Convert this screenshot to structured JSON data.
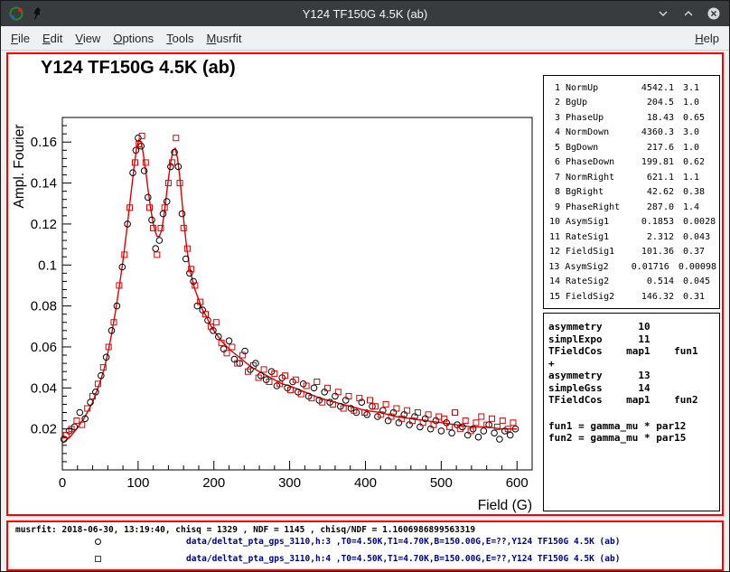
{
  "window": {
    "title": "Y124 TF150G 4.5K (ab)"
  },
  "menu": {
    "items": [
      {
        "label": "File"
      },
      {
        "label": "Edit"
      },
      {
        "label": "View"
      },
      {
        "label": "Options"
      },
      {
        "label": "Tools"
      },
      {
        "label": "Musrfit"
      }
    ],
    "right_items": [
      {
        "label": "Help"
      }
    ]
  },
  "canvas": {
    "title": "Y124 TF150G 4.5K (ab)"
  },
  "params_panel": {
    "rows": [
      {
        "idx": "1",
        "name": "NormUp",
        "value": "4542.1",
        "error": "3.1"
      },
      {
        "idx": "2",
        "name": "BgUp",
        "value": "204.5",
        "error": "1.0"
      },
      {
        "idx": "3",
        "name": "PhaseUp",
        "value": "18.43",
        "error": "0.65"
      },
      {
        "idx": "4",
        "name": "NormDown",
        "value": "4360.3",
        "error": "3.0"
      },
      {
        "idx": "5",
        "name": "BgDown",
        "value": "217.6",
        "error": "1.0"
      },
      {
        "idx": "6",
        "name": "PhaseDown",
        "value": "199.81",
        "error": "0.62"
      },
      {
        "idx": "7",
        "name": "NormRight",
        "value": "621.1",
        "error": "1.1"
      },
      {
        "idx": "8",
        "name": "BgRight",
        "value": "42.62",
        "error": "0.38"
      },
      {
        "idx": "9",
        "name": "PhaseRight",
        "value": "287.0",
        "error": "1.4"
      },
      {
        "idx": "10",
        "name": "AsymSig1",
        "value": "0.1853",
        "error": "0.0028"
      },
      {
        "idx": "11",
        "name": "RateSig1",
        "value": "2.312",
        "error": "0.043"
      },
      {
        "idx": "12",
        "name": "FieldSig1",
        "value": "101.36",
        "error": "0.37"
      },
      {
        "idx": "13",
        "name": "AsymSig2",
        "value": "0.01716",
        "error": "0.00098"
      },
      {
        "idx": "14",
        "name": "RateSig2",
        "value": "0.514",
        "error": "0.045"
      },
      {
        "idx": "15",
        "name": "FieldSig2",
        "value": "146.32",
        "error": "0.31"
      }
    ]
  },
  "theory_panel": {
    "lines": [
      "asymmetry      10",
      "simplExpo      11",
      "TFieldCos    map1    fun1",
      "+",
      "asymmetry      13",
      "simpleGss      14",
      "TFieldCos    map1    fun2"
    ],
    "fun_lines": [
      "fun1 = gamma_mu * par12",
      "fun2 = gamma_mu * par15"
    ]
  },
  "footer": {
    "status": "musrfit: 2018-06-30, 13:19:40, chisq = 1329 , NDF = 1145 , chisq/NDF = 1.1606986899563319",
    "legend": [
      {
        "marker": "circle",
        "color": "#000000",
        "text": "data/deltat_pta_gps_3110,h:3 ,T0=4.50K,T1=4.70K,B=150.00G,E=??,Y124 TF150G 4.5K (ab)"
      },
      {
        "marker": "square",
        "color": "#e00000",
        "text": "data/deltat_pta_gps_3110,h:4 ,T0=4.50K,T1=4.70K,B=150.00G,E=??,Y124 TF150G 4.5K (ab)"
      }
    ]
  },
  "chart_data": {
    "type": "scatter",
    "title": "Y124 TF150G 4.5K (ab)",
    "xlabel": "Field (G)",
    "ylabel": "Ampl. Fourier",
    "xlim": [
      0,
      620
    ],
    "ylim": [
      0,
      0.172
    ],
    "xticks": [
      0,
      100,
      200,
      300,
      400,
      500,
      600
    ],
    "xtick_labels": [
      "0",
      "100",
      "200",
      "300",
      "400",
      "500",
      "600"
    ],
    "yticks": [
      0.02,
      0.04,
      0.06,
      0.08,
      0.1,
      0.12,
      0.14,
      0.16
    ],
    "ytick_labels": [
      "0.02",
      "0.04",
      "0.06",
      "0.08",
      "0.1",
      "0.12",
      "0.14",
      "0.16"
    ],
    "x_minor_step": 20,
    "y_minor_step": 0.004,
    "grid": false,
    "legend_position": "footer",
    "fit": {
      "name": "fit",
      "color": "#e00000",
      "points": [
        [
          0,
          0.013
        ],
        [
          10,
          0.016
        ],
        [
          20,
          0.0205
        ],
        [
          30,
          0.026
        ],
        [
          40,
          0.033
        ],
        [
          50,
          0.043
        ],
        [
          55,
          0.049
        ],
        [
          60,
          0.057
        ],
        [
          65,
          0.066
        ],
        [
          70,
          0.077
        ],
        [
          75,
          0.089
        ],
        [
          80,
          0.102
        ],
        [
          85,
          0.117
        ],
        [
          90,
          0.133
        ],
        [
          95,
          0.149
        ],
        [
          98,
          0.157
        ],
        [
          101,
          0.161
        ],
        [
          104,
          0.16
        ],
        [
          107,
          0.154
        ],
        [
          110,
          0.146
        ],
        [
          113,
          0.137
        ],
        [
          116,
          0.129
        ],
        [
          119,
          0.122
        ],
        [
          122,
          0.117
        ],
        [
          125,
          0.114
        ],
        [
          128,
          0.114
        ],
        [
          131,
          0.117
        ],
        [
          134,
          0.124
        ],
        [
          137,
          0.133
        ],
        [
          140,
          0.142
        ],
        [
          143,
          0.15
        ],
        [
          146,
          0.156
        ],
        [
          149,
          0.157
        ],
        [
          152,
          0.152
        ],
        [
          155,
          0.143
        ],
        [
          158,
          0.131
        ],
        [
          161,
          0.119
        ],
        [
          164,
          0.109
        ],
        [
          167,
          0.101
        ],
        [
          170,
          0.095
        ],
        [
          175,
          0.088
        ],
        [
          180,
          0.083
        ],
        [
          185,
          0.078
        ],
        [
          190,
          0.075
        ],
        [
          195,
          0.071
        ],
        [
          200,
          0.068
        ],
        [
          210,
          0.063
        ],
        [
          220,
          0.059
        ],
        [
          230,
          0.056
        ],
        [
          240,
          0.053
        ],
        [
          250,
          0.05
        ],
        [
          260,
          0.048
        ],
        [
          270,
          0.046
        ],
        [
          280,
          0.044
        ],
        [
          290,
          0.042
        ],
        [
          300,
          0.041
        ],
        [
          320,
          0.038
        ],
        [
          340,
          0.035
        ],
        [
          360,
          0.033
        ],
        [
          380,
          0.031
        ],
        [
          400,
          0.029
        ],
        [
          420,
          0.028
        ],
        [
          440,
          0.026
        ],
        [
          460,
          0.025
        ],
        [
          480,
          0.024
        ],
        [
          500,
          0.023
        ],
        [
          520,
          0.022
        ],
        [
          540,
          0.021
        ],
        [
          560,
          0.021
        ],
        [
          580,
          0.02
        ],
        [
          600,
          0.02
        ]
      ]
    },
    "series": [
      {
        "name": "data/deltat_pta_gps_3110,h:3",
        "marker": "circle",
        "color": "#000000",
        "points": [
          [
            2,
            0.015
          ],
          [
            9,
            0.019
          ],
          [
            16,
            0.021
          ],
          [
            23,
            0.028
          ],
          [
            30,
            0.025
          ],
          [
            37,
            0.033
          ],
          [
            44,
            0.038
          ],
          [
            51,
            0.046
          ],
          [
            58,
            0.055
          ],
          [
            65,
            0.068
          ],
          [
            72,
            0.08
          ],
          [
            79,
            0.099
          ],
          [
            86,
            0.12
          ],
          [
            93,
            0.145
          ],
          [
            97,
            0.156
          ],
          [
            100,
            0.162
          ],
          [
            104,
            0.158
          ],
          [
            108,
            0.146
          ],
          [
            113,
            0.133
          ],
          [
            118,
            0.122
          ],
          [
            123,
            0.108
          ],
          [
            128,
            0.112
          ],
          [
            133,
            0.125
          ],
          [
            138,
            0.131
          ],
          [
            143,
            0.148
          ],
          [
            148,
            0.155
          ],
          [
            153,
            0.148
          ],
          [
            158,
            0.125
          ],
          [
            163,
            0.103
          ],
          [
            168,
            0.096
          ],
          [
            173,
            0.092
          ],
          [
            178,
            0.08
          ],
          [
            185,
            0.078
          ],
          [
            192,
            0.073
          ],
          [
            199,
            0.068
          ],
          [
            206,
            0.065
          ],
          [
            213,
            0.059
          ],
          [
            220,
            0.063
          ],
          [
            227,
            0.054
          ],
          [
            234,
            0.052
          ],
          [
            241,
            0.058
          ],
          [
            248,
            0.049
          ],
          [
            255,
            0.052
          ],
          [
            262,
            0.046
          ],
          [
            269,
            0.044
          ],
          [
            276,
            0.048
          ],
          [
            283,
            0.041
          ],
          [
            290,
            0.045
          ],
          [
            297,
            0.04
          ],
          [
            304,
            0.043
          ],
          [
            311,
            0.038
          ],
          [
            318,
            0.042
          ],
          [
            325,
            0.036
          ],
          [
            332,
            0.04
          ],
          [
            339,
            0.034
          ],
          [
            346,
            0.038
          ],
          [
            353,
            0.033
          ],
          [
            360,
            0.036
          ],
          [
            367,
            0.031
          ],
          [
            374,
            0.034
          ],
          [
            381,
            0.03
          ],
          [
            388,
            0.028
          ],
          [
            395,
            0.033
          ],
          [
            402,
            0.027
          ],
          [
            409,
            0.031
          ],
          [
            416,
            0.026
          ],
          [
            423,
            0.029
          ],
          [
            430,
            0.024
          ],
          [
            437,
            0.028
          ],
          [
            444,
            0.023
          ],
          [
            451,
            0.027
          ],
          [
            458,
            0.022
          ],
          [
            465,
            0.026
          ],
          [
            472,
            0.021
          ],
          [
            479,
            0.025
          ],
          [
            486,
            0.02
          ],
          [
            493,
            0.024
          ],
          [
            500,
            0.019
          ],
          [
            507,
            0.023
          ],
          [
            514,
            0.018
          ],
          [
            521,
            0.022
          ],
          [
            528,
            0.021
          ],
          [
            535,
            0.017
          ],
          [
            542,
            0.02
          ],
          [
            549,
            0.016
          ],
          [
            556,
            0.019
          ],
          [
            563,
            0.022
          ],
          [
            570,
            0.018
          ],
          [
            577,
            0.015
          ],
          [
            584,
            0.019
          ],
          [
            591,
            0.017
          ],
          [
            598,
            0.02
          ]
        ]
      },
      {
        "name": "data/deltat_pta_gps_3110,h:4",
        "marker": "square",
        "color": "#e00000",
        "points": [
          [
            5,
            0.017
          ],
          [
            12,
            0.02
          ],
          [
            19,
            0.024
          ],
          [
            26,
            0.022
          ],
          [
            33,
            0.03
          ],
          [
            40,
            0.036
          ],
          [
            47,
            0.042
          ],
          [
            54,
            0.05
          ],
          [
            61,
            0.06
          ],
          [
            68,
            0.072
          ],
          [
            75,
            0.09
          ],
          [
            82,
            0.105
          ],
          [
            89,
            0.128
          ],
          [
            96,
            0.15
          ],
          [
            101,
            0.159
          ],
          [
            105,
            0.163
          ],
          [
            110,
            0.15
          ],
          [
            115,
            0.128
          ],
          [
            120,
            0.118
          ],
          [
            125,
            0.105
          ],
          [
            130,
            0.118
          ],
          [
            135,
            0.128
          ],
          [
            140,
            0.14
          ],
          [
            145,
            0.15
          ],
          [
            150,
            0.162
          ],
          [
            155,
            0.14
          ],
          [
            160,
            0.118
          ],
          [
            165,
            0.108
          ],
          [
            170,
            0.098
          ],
          [
            175,
            0.09
          ],
          [
            182,
            0.082
          ],
          [
            189,
            0.076
          ],
          [
            196,
            0.07
          ],
          [
            203,
            0.072
          ],
          [
            210,
            0.062
          ],
          [
            217,
            0.057
          ],
          [
            224,
            0.06
          ],
          [
            231,
            0.052
          ],
          [
            238,
            0.056
          ],
          [
            245,
            0.048
          ],
          [
            252,
            0.051
          ],
          [
            259,
            0.045
          ],
          [
            266,
            0.049
          ],
          [
            273,
            0.043
          ],
          [
            280,
            0.047
          ],
          [
            287,
            0.042
          ],
          [
            294,
            0.046
          ],
          [
            301,
            0.039
          ],
          [
            308,
            0.044
          ],
          [
            315,
            0.037
          ],
          [
            322,
            0.041
          ],
          [
            329,
            0.035
          ],
          [
            336,
            0.043
          ],
          [
            343,
            0.033
          ],
          [
            350,
            0.04
          ],
          [
            357,
            0.032
          ],
          [
            364,
            0.038
          ],
          [
            371,
            0.03
          ],
          [
            378,
            0.036
          ],
          [
            385,
            0.029
          ],
          [
            392,
            0.035
          ],
          [
            399,
            0.028
          ],
          [
            406,
            0.034
          ],
          [
            413,
            0.031
          ],
          [
            420,
            0.027
          ],
          [
            427,
            0.032
          ],
          [
            434,
            0.026
          ],
          [
            441,
            0.03
          ],
          [
            448,
            0.025
          ],
          [
            455,
            0.029
          ],
          [
            462,
            0.024
          ],
          [
            469,
            0.028
          ],
          [
            476,
            0.023
          ],
          [
            483,
            0.027
          ],
          [
            490,
            0.022
          ],
          [
            497,
            0.026
          ],
          [
            504,
            0.025
          ],
          [
            511,
            0.021
          ],
          [
            518,
            0.028
          ],
          [
            525,
            0.02
          ],
          [
            532,
            0.024
          ],
          [
            539,
            0.019
          ],
          [
            546,
            0.023
          ],
          [
            553,
            0.026
          ],
          [
            560,
            0.022
          ],
          [
            567,
            0.025
          ],
          [
            574,
            0.021
          ],
          [
            581,
            0.024
          ],
          [
            588,
            0.02
          ],
          [
            595,
            0.023
          ]
        ]
      }
    ]
  }
}
